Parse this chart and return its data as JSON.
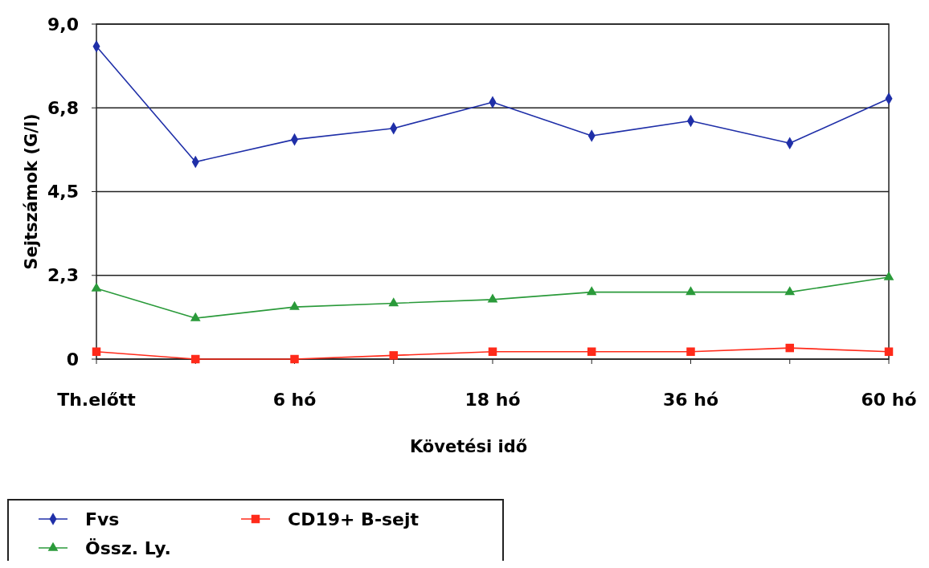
{
  "chart_data": {
    "type": "line",
    "xlabel": "Követési idő",
    "ylabel": "Sejtszámok (G/l)",
    "categories": [
      "Th.előtt",
      null,
      "6 hó",
      null,
      "18 hó",
      null,
      "36 hó",
      null,
      "60 hó"
    ],
    "ylim": [
      0,
      9
    ],
    "yticks": [
      0,
      {
        "value": 2.25,
        "label": "2,3"
      },
      {
        "value": 4.5,
        "label": "4,5"
      },
      {
        "value": 6.75,
        "label": "6,8"
      },
      {
        "value": 9,
        "label": "9,0"
      }
    ],
    "grid": "y",
    "legend": "bottom left",
    "series": [
      {
        "name": "Fvs",
        "color": "#1f2fa8",
        "marker": "diamond",
        "values": [
          8.4,
          5.3,
          5.9,
          6.2,
          6.9,
          6.0,
          6.4,
          5.8,
          7.0
        ]
      },
      {
        "name": "CD19+ B-sejt",
        "color": "#ff2a1a",
        "marker": "square",
        "values": [
          0.2,
          0.0,
          0.0,
          0.1,
          0.2,
          0.2,
          0.2,
          0.3,
          0.2
        ]
      },
      {
        "name": "Össz. Ly.",
        "color": "#2a9a3a",
        "marker": "triangle",
        "values": [
          1.9,
          1.1,
          1.4,
          1.5,
          1.6,
          1.8,
          1.8,
          1.8,
          2.2
        ]
      }
    ]
  }
}
